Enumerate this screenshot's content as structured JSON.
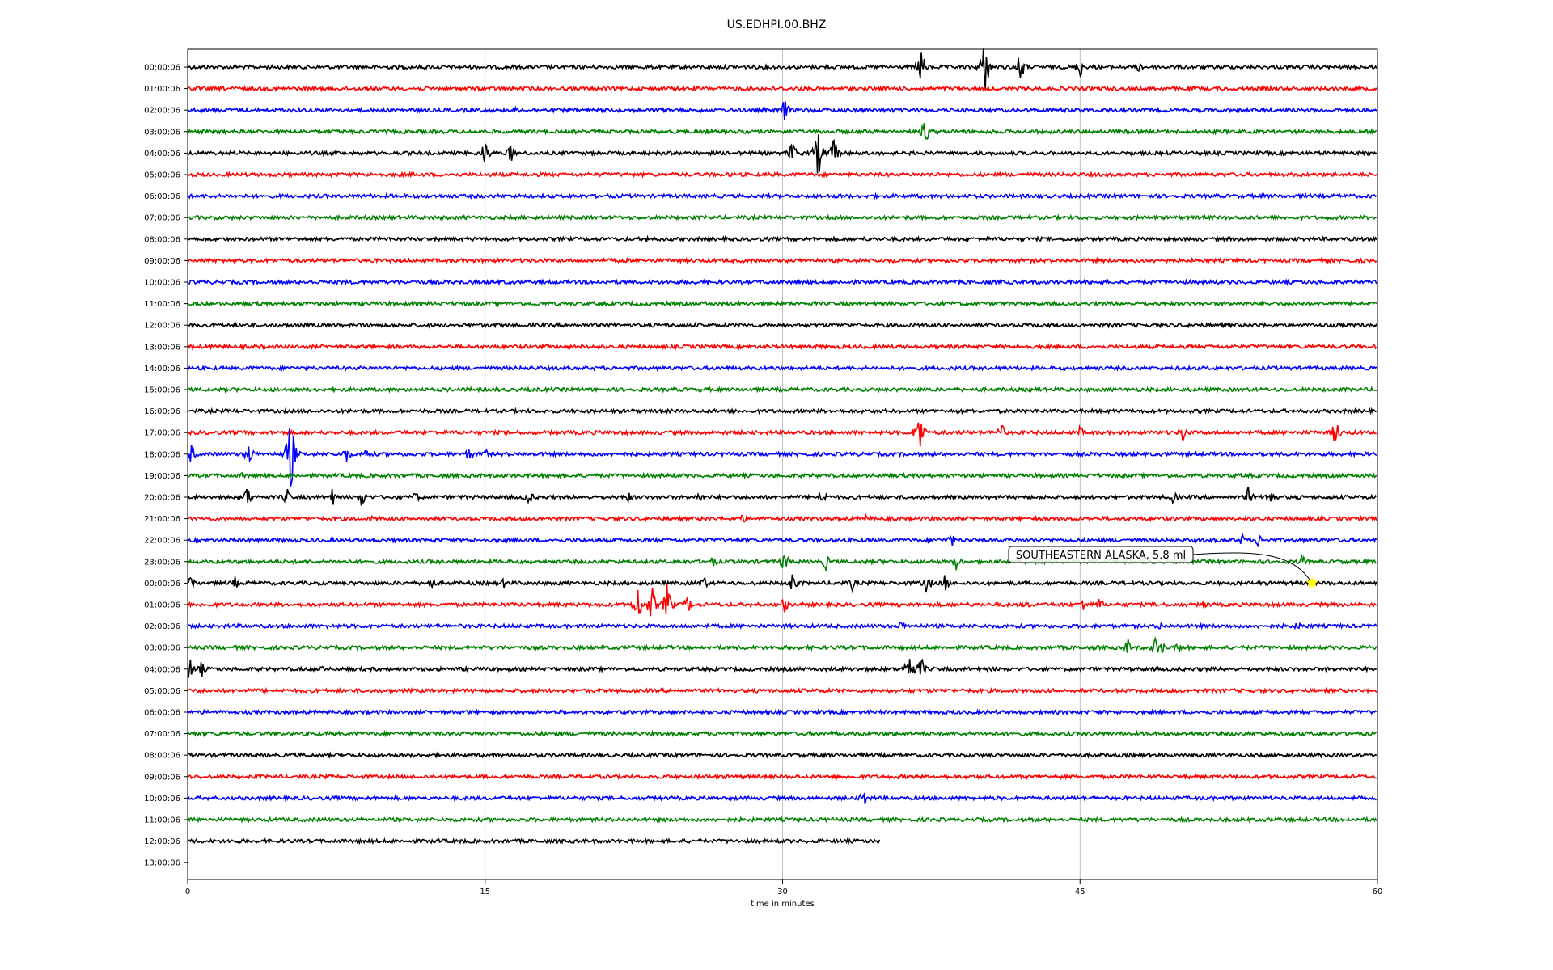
{
  "chart_data": {
    "type": "line",
    "title": "US.EDHPI.00.BHZ",
    "xlabel": "time in minutes",
    "ylabel": "",
    "xlim": [
      0,
      60
    ],
    "x_ticks": [
      "0",
      "15",
      "30",
      "45",
      "60"
    ],
    "vertical_grid_at": [
      15,
      30,
      45
    ],
    "grid": true,
    "trace_colors": [
      "#000000",
      "#ff0000",
      "#0000ff",
      "#008000"
    ],
    "row_labels": [
      "00:00:06",
      "01:00:06",
      "02:00:06",
      "03:00:06",
      "04:00:06",
      "05:00:06",
      "06:00:06",
      "07:00:06",
      "08:00:06",
      "09:00:06",
      "10:00:06",
      "11:00:06",
      "12:00:06",
      "13:00:06",
      "14:00:06",
      "15:00:06",
      "16:00:06",
      "17:00:06",
      "18:00:06",
      "19:00:06",
      "20:00:06",
      "21:00:06",
      "22:00:06",
      "23:00:06",
      "00:00:06",
      "01:00:06",
      "02:00:06",
      "03:00:06",
      "04:00:06",
      "05:00:06",
      "06:00:06",
      "07:00:06",
      "08:00:06",
      "09:00:06",
      "10:00:06",
      "11:00:06",
      "12:00:06",
      "13:00:06"
    ],
    "traces": [
      {
        "row": 0,
        "end_min": 60,
        "events": [
          [
            37,
            1.4
          ],
          [
            40.2,
            2.2
          ],
          [
            42,
            1.3
          ],
          [
            45,
            0.9
          ],
          [
            48,
            0.5
          ]
        ]
      },
      {
        "row": 1,
        "end_min": 60,
        "events": []
      },
      {
        "row": 2,
        "end_min": 60,
        "events": [
          [
            30.1,
            0.9
          ],
          [
            16.5,
            0.3
          ]
        ]
      },
      {
        "row": 3,
        "end_min": 60,
        "events": [
          [
            37.2,
            1.1
          ]
        ]
      },
      {
        "row": 4,
        "end_min": 60,
        "events": [
          [
            15,
            1.1
          ],
          [
            16.3,
            0.8
          ],
          [
            30.5,
            1.0
          ],
          [
            31.8,
            1.9
          ],
          [
            32.6,
            1.2
          ]
        ]
      },
      {
        "row": 5,
        "end_min": 60,
        "events": []
      },
      {
        "row": 6,
        "end_min": 60,
        "events": []
      },
      {
        "row": 7,
        "end_min": 60,
        "events": []
      },
      {
        "row": 8,
        "end_min": 60,
        "events": [
          [
            23.2,
            0.3
          ]
        ]
      },
      {
        "row": 9,
        "end_min": 60,
        "events": []
      },
      {
        "row": 10,
        "end_min": 60,
        "events": []
      },
      {
        "row": 11,
        "end_min": 60,
        "events": []
      },
      {
        "row": 12,
        "end_min": 60,
        "events": []
      },
      {
        "row": 13,
        "end_min": 60,
        "events": []
      },
      {
        "row": 14,
        "end_min": 60,
        "events": []
      },
      {
        "row": 15,
        "end_min": 60,
        "events": []
      },
      {
        "row": 16,
        "end_min": 60,
        "events": []
      },
      {
        "row": 17,
        "end_min": 60,
        "events": [
          [
            36.9,
            2.0
          ],
          [
            41,
            0.9
          ],
          [
            45,
            0.5
          ],
          [
            50.2,
            0.8
          ],
          [
            57.9,
            1.1
          ]
        ]
      },
      {
        "row": 18,
        "end_min": 60,
        "events": [
          [
            0.2,
            0.8
          ],
          [
            3.1,
            0.9
          ],
          [
            5.2,
            3.0
          ],
          [
            8,
            0.7
          ],
          [
            9,
            0.6
          ],
          [
            14.2,
            0.6
          ],
          [
            15,
            0.5
          ]
        ]
      },
      {
        "row": 19,
        "end_min": 60,
        "events": [
          [
            2.8,
            0.3
          ]
        ]
      },
      {
        "row": 20,
        "end_min": 60,
        "events": [
          [
            3,
            0.9
          ],
          [
            5,
            0.7
          ],
          [
            7.3,
            0.7
          ],
          [
            8.8,
            0.9
          ],
          [
            11.5,
            0.5
          ],
          [
            17.2,
            0.7
          ],
          [
            22.2,
            0.5
          ],
          [
            25.8,
            0.5
          ],
          [
            32,
            0.8
          ],
          [
            49.7,
            0.6
          ],
          [
            53.5,
            0.8
          ],
          [
            54.6,
            0.9
          ]
        ]
      },
      {
        "row": 21,
        "end_min": 60,
        "events": [
          [
            28,
            0.4
          ],
          [
            34.2,
            0.3
          ],
          [
            9.3,
            0.2
          ]
        ]
      },
      {
        "row": 22,
        "end_min": 60,
        "events": [
          [
            38.5,
            0.6
          ],
          [
            53.2,
            0.5
          ],
          [
            54,
            0.6
          ]
        ]
      },
      {
        "row": 23,
        "end_min": 60,
        "events": [
          [
            26.5,
            0.5
          ],
          [
            30.1,
            0.9
          ],
          [
            32.2,
            0.7
          ],
          [
            38.8,
            0.8
          ],
          [
            43,
            0.5
          ],
          [
            56.2,
            0.5
          ]
        ]
      },
      {
        "row": 24,
        "end_min": 60,
        "events": [
          [
            0.2,
            0.7
          ],
          [
            2.4,
            0.5
          ],
          [
            12.3,
            0.6
          ],
          [
            16,
            0.5
          ],
          [
            26,
            0.7
          ],
          [
            30.5,
            0.9
          ],
          [
            33.5,
            0.6
          ],
          [
            37.3,
            0.9
          ],
          [
            38.2,
            0.7
          ]
        ]
      },
      {
        "row": 25,
        "end_min": 60,
        "events": [
          [
            22.7,
            1.6
          ],
          [
            23.4,
            1.5
          ],
          [
            24.2,
            1.7
          ],
          [
            25.2,
            0.8
          ],
          [
            30.1,
            0.7
          ],
          [
            45.2,
            0.6
          ],
          [
            46,
            0.6
          ],
          [
            51.3,
            0.4
          ],
          [
            42.3,
            0.4
          ]
        ]
      },
      {
        "row": 26,
        "end_min": 60,
        "events": [
          [
            36,
            0.5
          ],
          [
            49,
            0.4
          ],
          [
            56,
            0.4
          ]
        ]
      },
      {
        "row": 27,
        "end_min": 60,
        "events": [
          [
            47.4,
            0.7
          ],
          [
            48.8,
            0.8
          ],
          [
            49.2,
            0.6
          ],
          [
            50,
            0.5
          ]
        ]
      },
      {
        "row": 28,
        "end_min": 60,
        "events": [
          [
            0.1,
            1.0
          ],
          [
            0.7,
            0.6
          ],
          [
            6.7,
            0.4
          ],
          [
            36.4,
            1.5
          ],
          [
            37,
            0.9
          ]
        ]
      },
      {
        "row": 29,
        "end_min": 60,
        "events": []
      },
      {
        "row": 30,
        "end_min": 60,
        "events": []
      },
      {
        "row": 31,
        "end_min": 60,
        "events": []
      },
      {
        "row": 32,
        "end_min": 60,
        "events": []
      },
      {
        "row": 33,
        "end_min": 60,
        "events": []
      },
      {
        "row": 34,
        "end_min": 60,
        "events": [
          [
            34.1,
            0.7
          ]
        ]
      },
      {
        "row": 35,
        "end_min": 60,
        "events": []
      },
      {
        "row": 36,
        "end_min": 34.9,
        "events": []
      }
    ],
    "annotation": {
      "text": "SOUTHEASTERN ALASKA, 5.8 ml",
      "row": 24,
      "x_min": 56.7,
      "marker_color": "#ffff00"
    }
  }
}
